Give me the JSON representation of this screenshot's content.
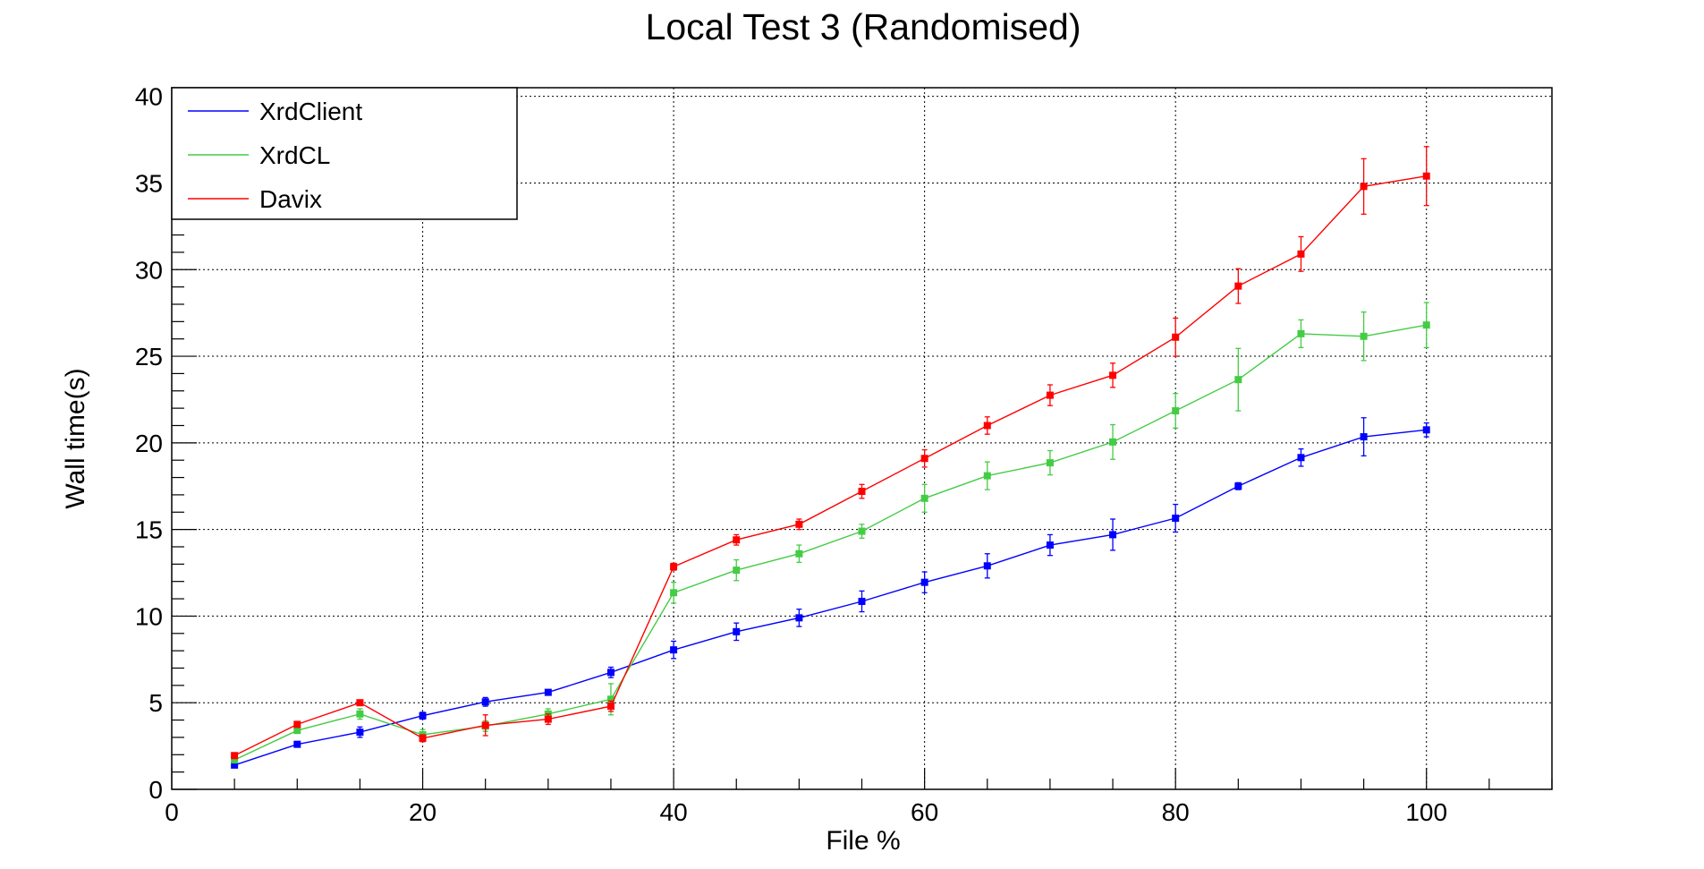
{
  "chart_data": {
    "type": "line",
    "title": "Local Test 3 (Randomised)",
    "xlabel": "File %",
    "ylabel": "Wall time(s)",
    "xlim": [
      0,
      110
    ],
    "ylim": [
      0,
      40.5
    ],
    "x_ticks": [
      0,
      20,
      40,
      60,
      80,
      100
    ],
    "y_ticks": [
      0,
      5,
      10,
      15,
      20,
      25,
      30,
      35,
      40
    ],
    "grid": true,
    "legend_position": "top-left",
    "x": [
      5,
      10,
      15,
      20,
      25,
      30,
      35,
      40,
      45,
      50,
      55,
      60,
      65,
      70,
      75,
      80,
      85,
      90,
      95,
      100
    ],
    "series": [
      {
        "name": "XrdClient",
        "color": "#0000ff",
        "values": [
          1.4,
          2.6,
          3.3,
          4.25,
          5.05,
          5.6,
          6.75,
          8.05,
          9.1,
          9.9,
          10.85,
          11.95,
          12.9,
          14.1,
          14.7,
          15.65,
          17.5,
          19.15,
          20.35,
          20.75
        ],
        "errors": [
          0.1,
          0.15,
          0.3,
          0.2,
          0.25,
          0.1,
          0.3,
          0.5,
          0.5,
          0.5,
          0.6,
          0.6,
          0.7,
          0.6,
          0.9,
          0.8,
          0.2,
          0.5,
          1.1,
          0.4
        ]
      },
      {
        "name": "XrdCL",
        "color": "#44cc44",
        "values": [
          1.7,
          3.4,
          4.35,
          3.15,
          3.65,
          4.35,
          5.2,
          11.35,
          12.65,
          13.6,
          14.9,
          16.8,
          18.1,
          18.85,
          20.05,
          21.85,
          23.65,
          26.3,
          26.15,
          26.8
        ],
        "errors": [
          0.1,
          0.15,
          0.3,
          0.3,
          0.3,
          0.3,
          0.9,
          0.6,
          0.6,
          0.5,
          0.4,
          0.8,
          0.8,
          0.7,
          1.0,
          1.0,
          1.8,
          0.8,
          1.4,
          1.3
        ]
      },
      {
        "name": "Davix",
        "color": "#ff0000",
        "values": [
          1.95,
          3.75,
          5.0,
          2.95,
          3.7,
          4.05,
          4.8,
          12.85,
          14.4,
          15.3,
          17.2,
          19.1,
          21.0,
          22.75,
          23.9,
          26.1,
          29.05,
          30.9,
          34.8,
          35.4
        ],
        "errors": [
          0.1,
          0.1,
          0.1,
          0.2,
          0.6,
          0.3,
          0.3,
          0.2,
          0.3,
          0.3,
          0.4,
          0.5,
          0.5,
          0.6,
          0.7,
          1.1,
          1.0,
          1.0,
          1.6,
          1.7
        ]
      }
    ]
  }
}
